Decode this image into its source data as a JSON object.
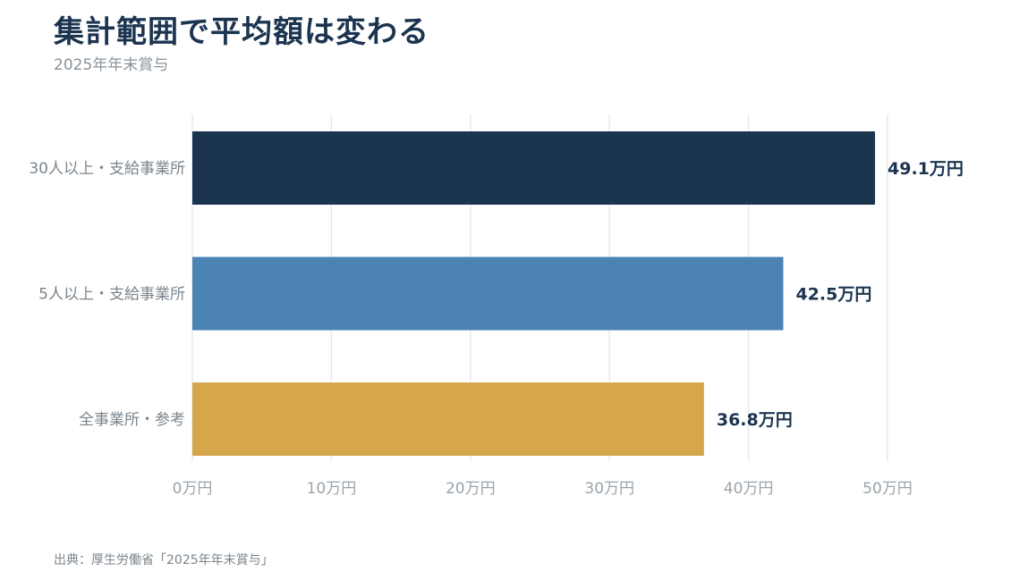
{
  "title": "集計範囲で平均額は変わる",
  "subtitle": "2025年年末賞与",
  "source": "出典：厚生労働省「2025年年末賞与」",
  "chart_data": {
    "type": "bar",
    "orientation": "horizontal",
    "categories": [
      "30人以上・支給事業所",
      "5人以上・支給事業所",
      "全事業所・参考"
    ],
    "values": [
      49.1,
      42.5,
      36.8
    ],
    "value_labels": [
      "49.1万円",
      "42.5万円",
      "36.8万円"
    ],
    "colors": [
      "#1b344f",
      "#4a83b4",
      "#d6a64a"
    ],
    "xlim": [
      0,
      50
    ],
    "xticks": [
      0,
      10,
      20,
      30,
      40,
      50
    ],
    "xtick_labels": [
      "0万円",
      "10万円",
      "20万円",
      "30万円",
      "40万円",
      "50万円"
    ],
    "grid": true
  }
}
